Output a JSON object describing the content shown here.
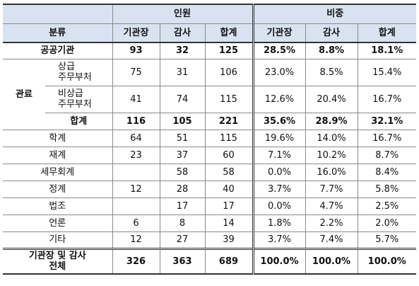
{
  "header": {
    "group_personnel": "인원",
    "group_ratio": "비중",
    "classification": "분류",
    "cols": [
      "기관장",
      "감사",
      "합계",
      "기관장",
      "감사",
      "합계"
    ]
  },
  "rows": {
    "public": {
      "label": "공공기관",
      "v": [
        "93",
        "32",
        "125",
        "28.5%",
        "8.8%",
        "18.1%"
      ]
    },
    "bureaucrat_label": "관료",
    "standing": {
      "label": "상급\n주무부처",
      "v": [
        "75",
        "31",
        "106",
        "23.0%",
        "8.5%",
        "15.4%"
      ]
    },
    "nonstanding": {
      "label": "비상급\n주무부처",
      "v": [
        "41",
        "74",
        "115",
        "12.6%",
        "20.4%",
        "16.7%"
      ]
    },
    "subtotal": {
      "label": "합계",
      "v": [
        "116",
        "105",
        "221",
        "35.6%",
        "28.9%",
        "32.1%"
      ]
    },
    "academia": {
      "label": "학계",
      "v": [
        "64",
        "51",
        "115",
        "19.6%",
        "14.0%",
        "16.7%"
      ]
    },
    "finance": {
      "label": "재계",
      "v": [
        "23",
        "37",
        "60",
        "7.1%",
        "10.2%",
        "8.7%"
      ]
    },
    "tax": {
      "label": "세무회계",
      "v": [
        "",
        "58",
        "58",
        "0.0%",
        "16.0%",
        "8.4%"
      ]
    },
    "politics": {
      "label": "정계",
      "v": [
        "12",
        "28",
        "40",
        "3.7%",
        "7.7%",
        "5.8%"
      ]
    },
    "law": {
      "label": "법조",
      "v": [
        "",
        "17",
        "17",
        "0.0%",
        "4.7%",
        "2.5%"
      ]
    },
    "press": {
      "label": "언론",
      "v": [
        "6",
        "8",
        "14",
        "1.8%",
        "2.2%",
        "2.0%"
      ]
    },
    "other": {
      "label": "기타",
      "v": [
        "12",
        "27",
        "39",
        "3.7%",
        "7.4%",
        "5.7%"
      ]
    },
    "total": {
      "label": "기관장 및 감사\n전체",
      "v": [
        "326",
        "363",
        "689",
        "100.0%",
        "100.0%",
        "100.0%"
      ]
    }
  }
}
